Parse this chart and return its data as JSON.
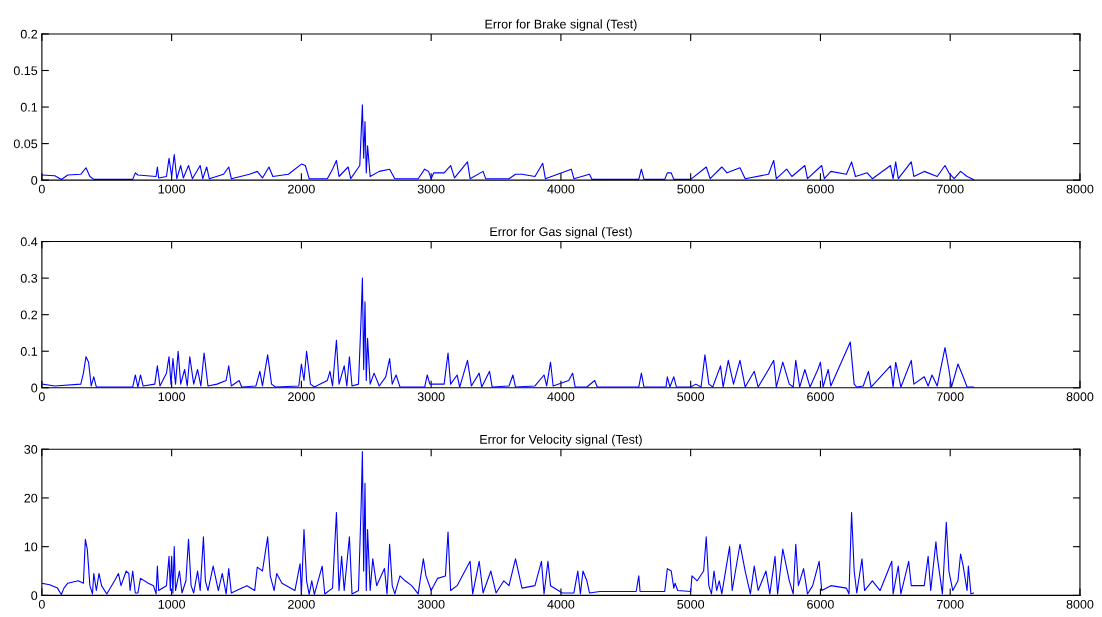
{
  "chart_data": [
    {
      "type": "line",
      "title": "Error for Brake signal (Test)",
      "xlim": [
        0,
        8000
      ],
      "xticks": [
        0,
        1000,
        2000,
        3000,
        4000,
        5000,
        6000,
        7000,
        8000
      ],
      "ylim": [
        0,
        0.2
      ],
      "yticks": [
        0,
        0.05,
        0.1,
        0.15,
        0.2
      ],
      "series": [
        {
          "color": "#0000ff",
          "x": [
            0,
            100,
            150,
            200,
            300,
            340,
            370,
            400,
            700,
            720,
            740,
            880,
            890,
            900,
            960,
            980,
            1000,
            1020,
            1040,
            1070,
            1090,
            1130,
            1160,
            1220,
            1240,
            1270,
            1290,
            1400,
            1440,
            1460,
            1600,
            1660,
            1700,
            1750,
            1780,
            1900,
            2000,
            2030,
            2060,
            2200,
            2240,
            2270,
            2290,
            2360,
            2380,
            2450,
            2470,
            2480,
            2490,
            2500,
            2510,
            2530,
            2600,
            2680,
            2720,
            2900,
            2950,
            2980,
            3000,
            3020,
            3100,
            3150,
            3180,
            3280,
            3300,
            3400,
            3420,
            3600,
            3650,
            3700,
            3800,
            3860,
            3880,
            4080,
            4100,
            4220,
            4240,
            4600,
            4620,
            4640,
            4800,
            4820,
            4850,
            4870,
            5000,
            5120,
            5150,
            5240,
            5280,
            5380,
            5420,
            5600,
            5640,
            5660,
            5740,
            5780,
            5880,
            5900,
            6010,
            6030,
            6080,
            6200,
            6240,
            6270,
            6360,
            6400,
            6540,
            6560,
            6580,
            6600,
            6700,
            6720,
            6800,
            6900,
            6960,
            6990,
            7030,
            7080,
            7130,
            7180
          ],
          "values": [
            0.007,
            0.006,
            0.001,
            0.007,
            0.008,
            0.017,
            0.005,
            0.001,
            0.001,
            0.01,
            0.007,
            0.005,
            0.018,
            0.003,
            0.005,
            0.03,
            0.005,
            0.035,
            0.002,
            0.02,
            0.003,
            0.02,
            0.002,
            0.02,
            0.002,
            0.018,
            0.002,
            0.008,
            0.018,
            0.002,
            0.008,
            0.012,
            0.003,
            0.018,
            0.005,
            0.008,
            0.022,
            0.02,
            0.002,
            0.002,
            0.015,
            0.027,
            0.005,
            0.018,
            0.002,
            0.02,
            0.103,
            0.03,
            0.08,
            0.01,
            0.047,
            0.005,
            0.012,
            0.015,
            0.002,
            0.002,
            0.015,
            0.012,
            0.002,
            0.01,
            0.01,
            0.02,
            0.003,
            0.025,
            0.002,
            0.012,
            0.002,
            0.002,
            0.008,
            0.008,
            0.005,
            0.023,
            0.002,
            0.015,
            0.002,
            0.008,
            0.001,
            0.001,
            0.015,
            0.001,
            0.001,
            0.01,
            0.01,
            0.001,
            0.001,
            0.018,
            0.002,
            0.018,
            0.01,
            0.017,
            0.002,
            0.008,
            0.027,
            0.002,
            0.015,
            0.005,
            0.02,
            0.002,
            0.02,
            0.002,
            0.012,
            0.008,
            0.025,
            0.005,
            0.01,
            0.002,
            0.02,
            0.002,
            0.025,
            0.002,
            0.025,
            0.005,
            0.012,
            0.005,
            0.02,
            0.01,
            0.002,
            0.012,
            0.005,
            0.001
          ]
        }
      ]
    },
    {
      "type": "line",
      "title": "Error for Gas signal (Test)",
      "xlim": [
        0,
        8000
      ],
      "xticks": [
        0,
        1000,
        2000,
        3000,
        4000,
        5000,
        6000,
        7000,
        8000
      ],
      "ylim": [
        0,
        0.4
      ],
      "yticks": [
        0,
        0.1,
        0.2,
        0.3,
        0.4
      ],
      "series": [
        {
          "color": "#0000ff",
          "x": [
            0,
            100,
            300,
            320,
            340,
            360,
            380,
            400,
            420,
            700,
            720,
            740,
            760,
            780,
            870,
            890,
            910,
            960,
            980,
            995,
            1010,
            1030,
            1050,
            1070,
            1100,
            1120,
            1140,
            1170,
            1200,
            1225,
            1250,
            1280,
            1350,
            1420,
            1440,
            1460,
            1520,
            1540,
            1650,
            1680,
            1700,
            1740,
            1770,
            1800,
            1980,
            2000,
            2020,
            2040,
            2070,
            2100,
            2200,
            2220,
            2240,
            2270,
            2290,
            2330,
            2350,
            2370,
            2390,
            2440,
            2460,
            2470,
            2480,
            2490,
            2500,
            2510,
            2530,
            2560,
            2600,
            2650,
            2680,
            2700,
            2730,
            2760,
            2950,
            2970,
            2990,
            3100,
            3130,
            3150,
            3200,
            3220,
            3280,
            3310,
            3370,
            3390,
            3450,
            3470,
            3600,
            3630,
            3650,
            3800,
            3870,
            3890,
            3920,
            3940,
            4060,
            4090,
            4110,
            4200,
            4260,
            4280,
            4600,
            4620,
            4640,
            4810,
            4820,
            4840,
            4870,
            4890,
            5000,
            5040,
            5080,
            5110,
            5140,
            5170,
            5230,
            5250,
            5290,
            5330,
            5380,
            5420,
            5490,
            5520,
            5600,
            5640,
            5660,
            5710,
            5760,
            5790,
            5810,
            5840,
            5880,
            5920,
            5980,
            6000,
            6020,
            6060,
            6080,
            6230,
            6260,
            6280,
            6330,
            6370,
            6390,
            6540,
            6560,
            6580,
            6620,
            6700,
            6720,
            6800,
            6830,
            6860,
            6900,
            6960,
            6990,
            7010,
            7060,
            7100,
            7130,
            7180
          ],
          "values": [
            0.01,
            0.005,
            0.01,
            0.04,
            0.085,
            0.07,
            0.005,
            0.03,
            0.002,
            0.002,
            0.035,
            0.002,
            0.035,
            0.005,
            0.01,
            0.06,
            0.005,
            0.04,
            0.085,
            0.01,
            0.08,
            0.01,
            0.1,
            0.01,
            0.05,
            0.005,
            0.085,
            0.01,
            0.05,
            0.005,
            0.095,
            0.005,
            0.01,
            0.02,
            0.06,
            0.005,
            0.02,
            0.002,
            0.005,
            0.045,
            0.005,
            0.09,
            0.01,
            0.002,
            0.005,
            0.065,
            0.02,
            0.1,
            0.01,
            0.002,
            0.02,
            0.045,
            0.005,
            0.13,
            0.01,
            0.06,
            0.005,
            0.085,
            0.005,
            0.01,
            0.19,
            0.3,
            0.05,
            0.235,
            0.02,
            0.135,
            0.01,
            0.04,
            0.005,
            0.03,
            0.08,
            0.01,
            0.035,
            0.002,
            0.002,
            0.035,
            0.01,
            0.01,
            0.095,
            0.01,
            0.035,
            0.002,
            0.075,
            0.005,
            0.04,
            0.002,
            0.045,
            0.002,
            0.005,
            0.035,
            0.002,
            0.005,
            0.035,
            0.005,
            0.07,
            0.005,
            0.02,
            0.04,
            0.002,
            0.002,
            0.02,
            0.002,
            0.002,
            0.04,
            0.002,
            0.002,
            0.03,
            0.002,
            0.03,
            0.002,
            0.002,
            0.01,
            0.002,
            0.09,
            0.01,
            0.002,
            0.06,
            0.002,
            0.075,
            0.01,
            0.075,
            0.002,
            0.045,
            0.002,
            0.05,
            0.075,
            0.002,
            0.07,
            0.01,
            0.002,
            0.075,
            0.002,
            0.05,
            0.002,
            0.05,
            0.07,
            0.002,
            0.05,
            0.005,
            0.125,
            0.01,
            0.002,
            0.005,
            0.045,
            0.002,
            0.06,
            0.002,
            0.07,
            0.002,
            0.075,
            0.01,
            0.03,
            0.005,
            0.035,
            0.005,
            0.11,
            0.05,
            0.002,
            0.065,
            0.03,
            0.002,
            0.002
          ]
        }
      ]
    },
    {
      "type": "line",
      "title": "Error for Velocity signal (Test)",
      "xlim": [
        0,
        8000
      ],
      "xticks": [
        0,
        1000,
        2000,
        3000,
        4000,
        5000,
        6000,
        7000,
        8000
      ],
      "ylim": [
        0,
        30
      ],
      "yticks": [
        0,
        10,
        20,
        30
      ],
      "series": [
        {
          "color": "#0000ff",
          "x": [
            0,
            60,
            120,
            150,
            170,
            200,
            280,
            320,
            335,
            350,
            370,
            390,
            400,
            420,
            440,
            460,
            500,
            560,
            590,
            610,
            650,
            670,
            680,
            700,
            720,
            740,
            760,
            820,
            860,
            880,
            890,
            900,
            960,
            980,
            990,
            1000,
            1010,
            1020,
            1030,
            1060,
            1080,
            1110,
            1130,
            1150,
            1170,
            1200,
            1220,
            1245,
            1260,
            1280,
            1320,
            1360,
            1390,
            1420,
            1440,
            1460,
            1500,
            1580,
            1640,
            1660,
            1700,
            1740,
            1760,
            1790,
            1810,
            1850,
            1950,
            1990,
            2000,
            2020,
            2040,
            2060,
            2080,
            2100,
            2160,
            2180,
            2240,
            2270,
            2290,
            2310,
            2330,
            2370,
            2390,
            2440,
            2460,
            2470,
            2480,
            2490,
            2500,
            2510,
            2530,
            2550,
            2580,
            2640,
            2660,
            2680,
            2700,
            2720,
            2760,
            2800,
            2850,
            2900,
            2940,
            2960,
            3000,
            3050,
            3110,
            3130,
            3150,
            3200,
            3300,
            3320,
            3370,
            3400,
            3460,
            3500,
            3560,
            3600,
            3650,
            3700,
            3800,
            3850,
            3870,
            3900,
            3920,
            3980,
            4010,
            4100,
            4130,
            4150,
            4170,
            4200,
            4220,
            4300,
            4450,
            4580,
            4600,
            4610,
            4800,
            4820,
            4850,
            4870,
            4880,
            4900,
            5000,
            5010,
            5050,
            5100,
            5120,
            5140,
            5160,
            5180,
            5200,
            5220,
            5240,
            5300,
            5320,
            5380,
            5420,
            5460,
            5490,
            5520,
            5580,
            5610,
            5650,
            5670,
            5710,
            5760,
            5790,
            5810,
            5830,
            5870,
            5900,
            5940,
            5990,
            6010,
            6080,
            6200,
            6220,
            6240,
            6260,
            6280,
            6320,
            6340,
            6400,
            6460,
            6550,
            6560,
            6600,
            6620,
            6680,
            6700,
            6800,
            6830,
            6850,
            6890,
            6900,
            6940,
            6970,
            6990,
            7020,
            7060,
            7080,
            7100,
            7130,
            7140,
            7160,
            7180
          ],
          "values": [
            2.5,
            2.2,
            1.5,
            0.2,
            1.5,
            2.5,
            3,
            2.5,
            11.5,
            9.5,
            2,
            0.3,
            4.5,
            1,
            4.5,
            2,
            0.3,
            3,
            4.5,
            2,
            5,
            4.5,
            1,
            5,
            0.5,
            0.5,
            3.5,
            2.5,
            2,
            0.3,
            6,
            1,
            2,
            8,
            1,
            8,
            0.5,
            10,
            1,
            5,
            0.5,
            3,
            11.5,
            2,
            0.5,
            5,
            1,
            12,
            3,
            1,
            6,
            1,
            4.5,
            0.3,
            5.5,
            0.5,
            1,
            2,
            1,
            5.8,
            5,
            12,
            4,
            1,
            4.5,
            2.5,
            1,
            6.5,
            0.3,
            13.5,
            3,
            0.2,
            3,
            0.2,
            6,
            0.3,
            1.5,
            17,
            1,
            8,
            1,
            12,
            0.3,
            1,
            18,
            29.5,
            5,
            23,
            1,
            13.5,
            1,
            7.5,
            2,
            5.5,
            0.3,
            10.5,
            2,
            0.3,
            4,
            3,
            2,
            0.3,
            7.5,
            4,
            1,
            3.5,
            4,
            13,
            1,
            2,
            7,
            0.3,
            7,
            0.5,
            5,
            0.5,
            3,
            2,
            7.5,
            1.5,
            2,
            7,
            0.3,
            7,
            2,
            1,
            0.5,
            0.5,
            5,
            0.3,
            5,
            3,
            0.5,
            0.8,
            0.8,
            0.8,
            4,
            0.8,
            0.8,
            5.5,
            5,
            1.5,
            2.5,
            1,
            0.8,
            4,
            3,
            5,
            12,
            2,
            0.3,
            5,
            1,
            3,
            0.3,
            10,
            1,
            10.5,
            5,
            0.3,
            6,
            1,
            5,
            0.3,
            8,
            0.3,
            9.5,
            3,
            0.3,
            10.5,
            2,
            5.5,
            0.3,
            2,
            7,
            1,
            2,
            1.5,
            0.3,
            17,
            5,
            0.5,
            7.5,
            1,
            3,
            1,
            7,
            0.3,
            6,
            0.3,
            7,
            2,
            2,
            8,
            1,
            11,
            8,
            0.3,
            15,
            5,
            1,
            3,
            8.5,
            6,
            1,
            6,
            0.3,
            0.5
          ]
        }
      ]
    }
  ]
}
